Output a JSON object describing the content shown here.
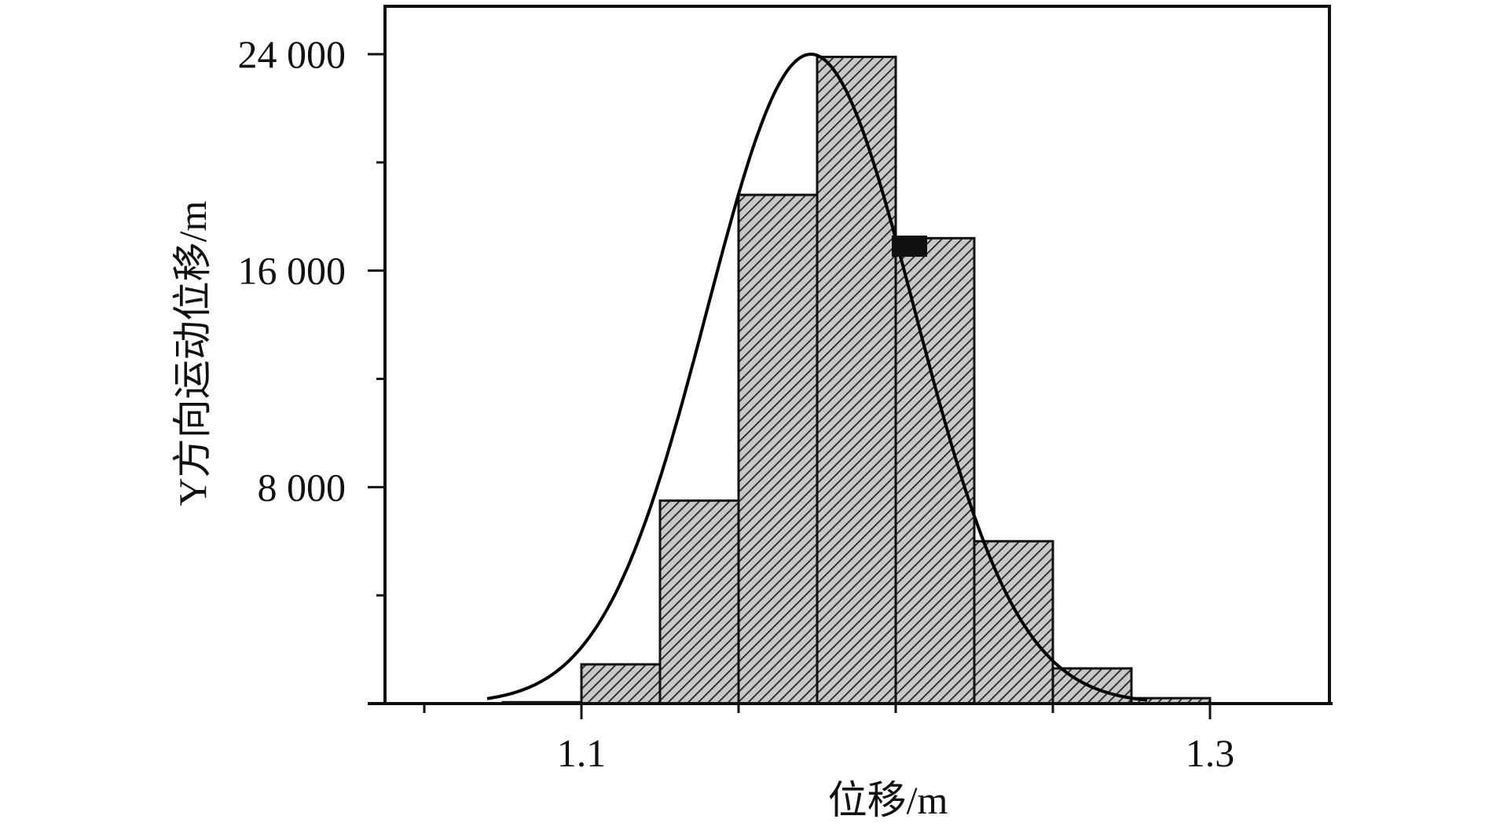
{
  "chart_data": {
    "type": "bar",
    "subtype": "histogram-with-normal-fit",
    "title": "",
    "xlabel": "位移/m",
    "ylabel": "Y方向运动位移/m",
    "xlim": [
      1.05,
      1.33
    ],
    "ylim": [
      0,
      24000
    ],
    "x_ticks": [
      1.1,
      1.3
    ],
    "x_tick_labels": [
      "1.1",
      "1.3"
    ],
    "y_ticks": [
      8000,
      16000,
      24000
    ],
    "y_tick_labels": [
      "8 000",
      "16 000",
      "24 000"
    ],
    "bins": [
      {
        "x0": 1.075,
        "x1": 1.1,
        "value": 50
      },
      {
        "x0": 1.1,
        "x1": 1.125,
        "value": 1450
      },
      {
        "x0": 1.125,
        "x1": 1.15,
        "value": 7500
      },
      {
        "x0": 1.15,
        "x1": 1.175,
        "value": 18800
      },
      {
        "x0": 1.175,
        "x1": 1.2,
        "value": 23900
      },
      {
        "x0": 1.2,
        "x1": 1.225,
        "value": 17200
      },
      {
        "x0": 1.225,
        "x1": 1.25,
        "value": 6000
      },
      {
        "x0": 1.25,
        "x1": 1.275,
        "value": 1300
      },
      {
        "x0": 1.275,
        "x1": 1.3,
        "value": 200
      }
    ],
    "fit_curve": {
      "type": "normal",
      "mean": 1.173,
      "sd": 0.033,
      "peak": 24000,
      "x_range": [
        1.07,
        1.28
      ]
    },
    "grid": false,
    "legend": "none",
    "bar_fill": "diagonal-hatch",
    "colors": {
      "bar_fill": "#c8c8c8",
      "hatch": "#222222",
      "outline": "#111111",
      "curve": "#000000"
    }
  }
}
